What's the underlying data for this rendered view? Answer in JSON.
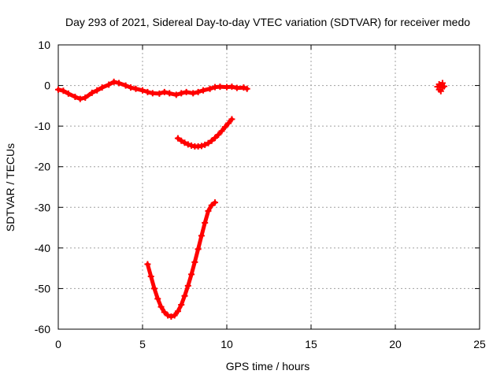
{
  "chart_data": {
    "type": "scatter",
    "title": "Day 293 of 2021, Sidereal Day-to-day VTEC variation (SDTVAR) for receiver medo",
    "xlabel": "GPS time / hours",
    "ylabel": "SDTVAR / TECUs",
    "xlim": [
      0,
      25
    ],
    "ylim": [
      -60,
      10
    ],
    "xticks": [
      0,
      5,
      10,
      15,
      20,
      25
    ],
    "yticks": [
      10,
      0,
      -10,
      -20,
      -30,
      -40,
      -50,
      -60
    ],
    "xtick_labels": [
      "0",
      "5",
      "10",
      "15",
      "20",
      "25"
    ],
    "ytick_labels": [
      "10",
      "0",
      "-10",
      "-20",
      "-30",
      "-40",
      "-50",
      "-60"
    ],
    "grid": true,
    "marker": "plus",
    "color": "#ff0000",
    "series": [
      {
        "name": "band near zero",
        "x": [
          0.0,
          0.3,
          0.6,
          1.0,
          1.3,
          1.6,
          2.0,
          2.3,
          2.6,
          3.0,
          3.3,
          3.6,
          4.0,
          4.3,
          4.6,
          5.0,
          5.3,
          5.6,
          6.0,
          6.3,
          6.6,
          7.0,
          7.3,
          7.6,
          8.0,
          8.3,
          8.6,
          9.0,
          9.3,
          9.6,
          10.0,
          10.3,
          10.6,
          11.0,
          11.2
        ],
        "y": [
          -1.0,
          -1.3,
          -2.0,
          -2.8,
          -3.3,
          -3.0,
          -1.8,
          -1.2,
          -0.5,
          0.2,
          0.9,
          0.6,
          0.0,
          -0.5,
          -0.8,
          -1.2,
          -1.6,
          -1.9,
          -2.0,
          -1.6,
          -1.9,
          -2.3,
          -1.9,
          -1.6,
          -1.9,
          -1.6,
          -1.2,
          -0.8,
          -0.4,
          -0.3,
          -0.4,
          -0.3,
          -0.6,
          -0.5,
          -0.8
        ]
      },
      {
        "name": "arc near -12 to -15",
        "x": [
          7.1,
          7.3,
          7.5,
          7.7,
          7.9,
          8.1,
          8.3,
          8.5,
          8.7,
          8.9,
          9.1,
          9.3,
          9.5,
          9.7,
          9.9,
          10.1,
          10.3
        ],
        "y": [
          -13.0,
          -13.6,
          -14.1,
          -14.5,
          -14.8,
          -15.0,
          -15.0,
          -14.9,
          -14.6,
          -14.2,
          -13.6,
          -12.9,
          -12.1,
          -11.2,
          -10.2,
          -9.3,
          -8.3
        ]
      },
      {
        "name": "deep arc to -57",
        "x": [
          5.3,
          5.5,
          5.7,
          5.9,
          6.1,
          6.3,
          6.5,
          6.7,
          6.9,
          7.1,
          7.3,
          7.5,
          7.7,
          7.9,
          8.1,
          8.3,
          8.5,
          8.7,
          8.9,
          9.1,
          9.3
        ],
        "y": [
          -44.0,
          -47.0,
          -50.0,
          -52.5,
          -54.5,
          -55.8,
          -56.6,
          -56.9,
          -56.6,
          -55.6,
          -54.0,
          -51.8,
          -49.3,
          -46.5,
          -43.5,
          -40.3,
          -37.0,
          -33.8,
          -30.9,
          -29.5,
          -28.8
        ]
      },
      {
        "name": "cluster near 22.7",
        "x": [
          22.5,
          22.6,
          22.7,
          22.8,
          22.9,
          22.7,
          22.6,
          22.8
        ],
        "y": [
          -0.3,
          0.3,
          0.1,
          -0.5,
          -0.2,
          -1.4,
          -1.0,
          0.6
        ]
      }
    ]
  }
}
